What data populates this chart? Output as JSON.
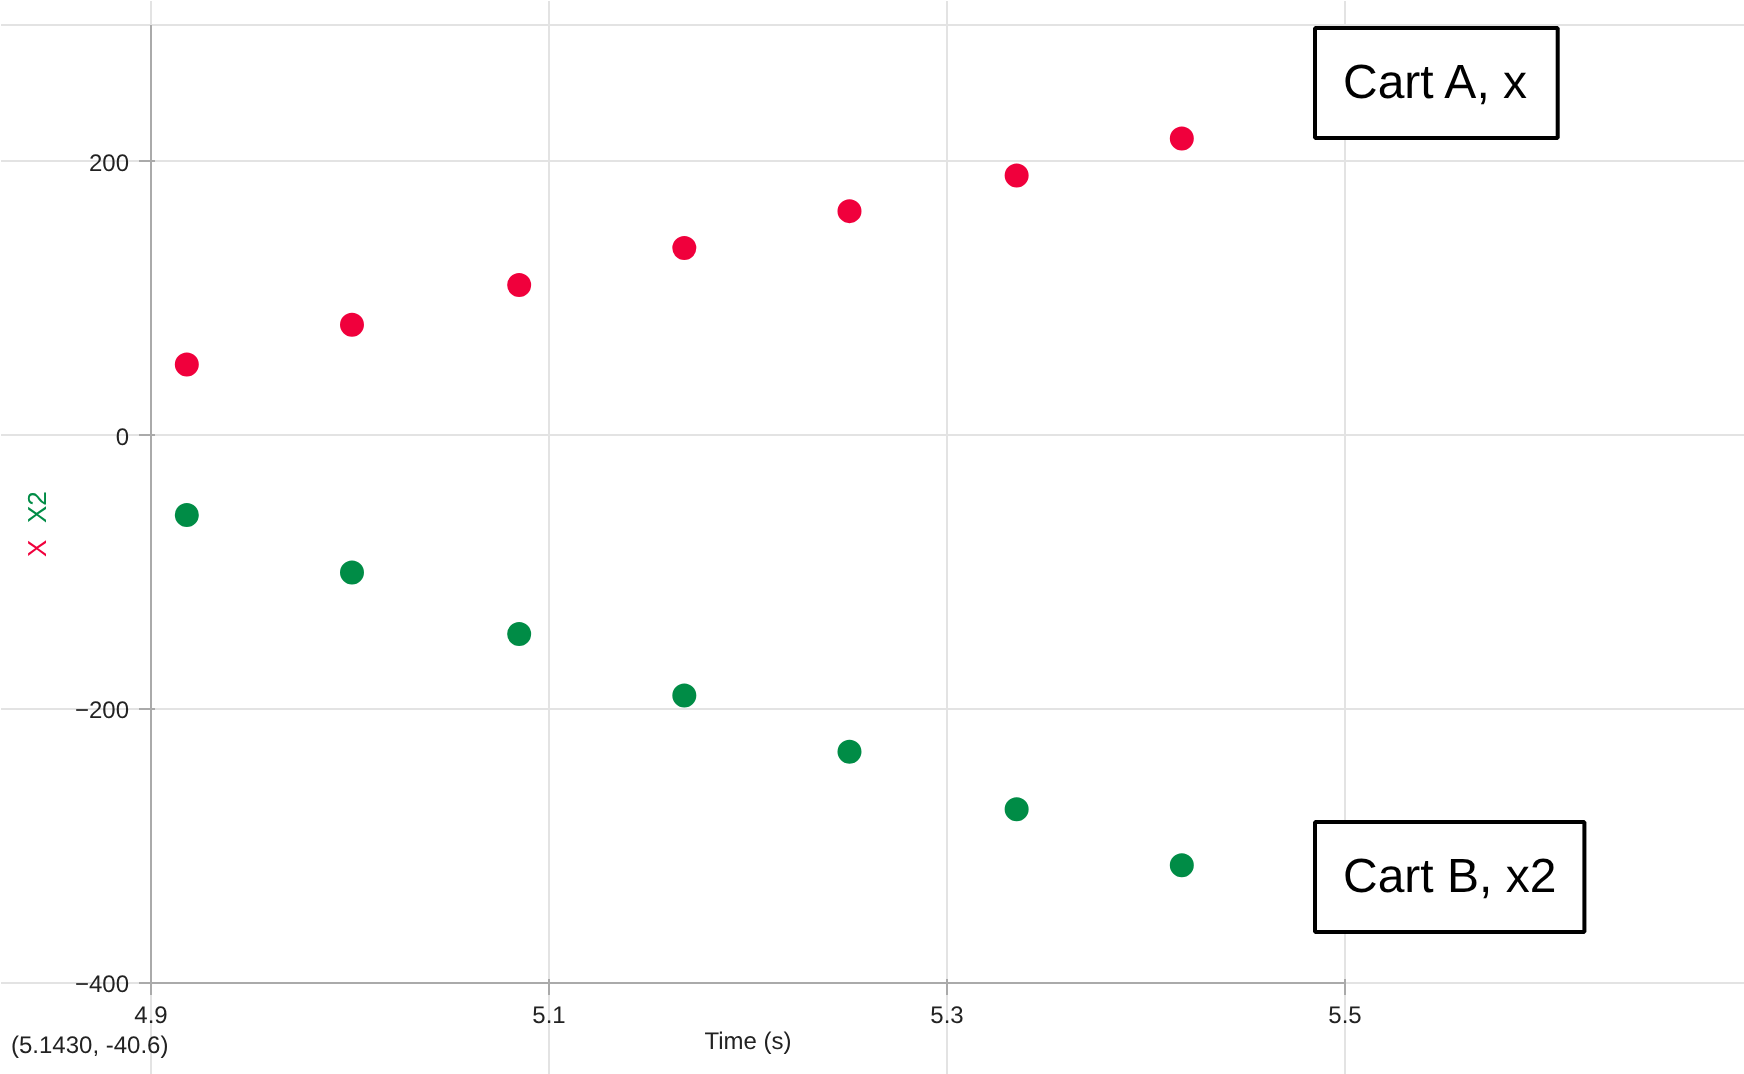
{
  "chart_data": {
    "type": "scatter",
    "xlabel": "Time (s)",
    "ylabel": "X X2",
    "x": [
      4.918,
      5.001,
      5.085,
      5.168,
      5.251,
      5.335,
      5.418
    ],
    "series": [
      {
        "color": "#f0003c",
        "values": [
          52,
          81,
          110,
          137,
          164,
          190,
          217
        ]
      },
      {
        "color": "#008c46",
        "values": [
          -58,
          -100,
          -145,
          -190,
          -231,
          -273,
          -314
        ]
      }
    ],
    "xlim": [
      4.9,
      5.5
    ],
    "ylim": [
      -400,
      300
    ],
    "xticks": [
      4.9,
      5.1,
      5.3,
      5.5
    ],
    "yticks": [
      -400,
      -200,
      0,
      200
    ],
    "grid": true,
    "marker": "circle",
    "annotations": [
      "Cart A, x",
      "Cart B, x2",
      "(5.1430, -40.6)"
    ]
  }
}
